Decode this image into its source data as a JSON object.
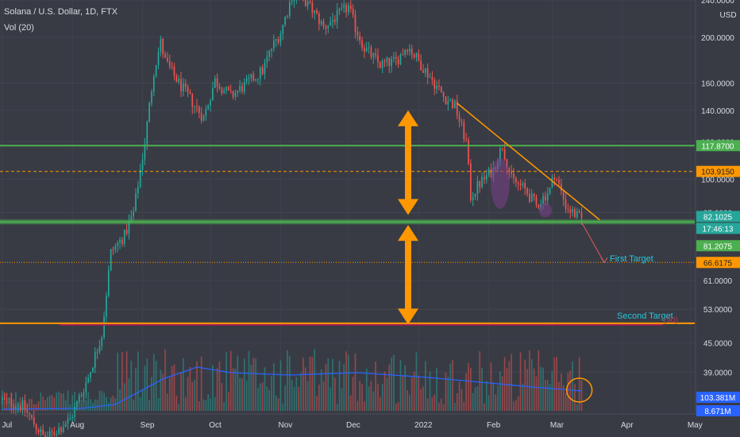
{
  "legend": {
    "title": "Solana / U.S. Dollar, 1D, FTX",
    "volume": "Vol (20)"
  },
  "price_axis": {
    "currency": "USD",
    "ticks": [
      "240.0000",
      "200.0000",
      "160.0000",
      "140.0000",
      "120.0000",
      "100.0000",
      "85.0000",
      "61.0000",
      "53.0000",
      "45.0000",
      "39.0000"
    ]
  },
  "time_axis": {
    "ticks": [
      "Jul",
      "Aug",
      "Sep",
      "Oct",
      "Nov",
      "Dec",
      "2022",
      "Feb",
      "Mar",
      "Apr",
      "May"
    ]
  },
  "price_tags": [
    {
      "text": "117.8700",
      "bg": "#4caf50",
      "fg": "#ffffff"
    },
    {
      "text": "103.9150",
      "bg": "#ff9800",
      "fg": "#1e1e1e"
    },
    {
      "text": "82.1025",
      "bg": "#26a69a",
      "fg": "#ffffff"
    },
    {
      "text": "17:46:13",
      "bg": "#26a69a",
      "fg": "#ffffff"
    },
    {
      "text": "81.2075",
      "bg": "#4caf50",
      "fg": "#ffffff"
    },
    {
      "text": "66.6175",
      "bg": "#ff9800",
      "fg": "#1e1e1e"
    },
    {
      "text": "103.381M",
      "bg": "#2962ff",
      "fg": "#ffffff"
    },
    {
      "text": "8.671M",
      "bg": "#2962ff",
      "fg": "#ffffff"
    }
  ],
  "annotations": {
    "first_target": "First Target",
    "second_target": "Second Target",
    "second_target_note": "(90)"
  },
  "colors": {
    "background": "#383b44",
    "up": "#26a69a",
    "down": "#ef5350",
    "support": "#4caf50",
    "dashed": "#ff9800",
    "arrow": "#ff9800",
    "trendline": "#ff9800",
    "volume_ma": "#2962ff",
    "target_text": "#26c6da",
    "ellipse": "#7b3f8a"
  },
  "chart_data": {
    "type": "candlestick",
    "symbol": "SOL/USD",
    "interval": "1D",
    "exchange": "FTX",
    "scale": "log",
    "ylim": [
      38,
      245
    ],
    "x_range": [
      "2021-06-30",
      "2022-05-03"
    ],
    "last_price": 82.1025,
    "countdown": "17:46:13",
    "horizontal_levels": [
      {
        "price": 117.87,
        "style": "solid",
        "color": "#4caf50"
      },
      {
        "price": 103.915,
        "style": "dashed",
        "color": "#ff9800"
      },
      {
        "price": 81.2075,
        "style": "solid",
        "color": "#4caf50"
      },
      {
        "price": 66.6175,
        "style": "dotted",
        "color": "#ff9800"
      },
      {
        "price": 49.5,
        "style": "solid",
        "color": "#ff9800"
      }
    ],
    "trendline": {
      "start": [
        "2022-01-18",
        145
      ],
      "end": [
        "2022-03-22",
        82
      ]
    },
    "projection": {
      "from": [
        "2022-03-14",
        81
      ],
      "to": [
        "2022-03-24",
        66.6
      ]
    },
    "price_waypoints": [
      [
        "2021-07-01",
        34
      ],
      [
        "2021-07-10",
        33
      ],
      [
        "2021-07-20",
        28
      ],
      [
        "2021-07-31",
        31
      ],
      [
        "2021-08-08",
        38
      ],
      [
        "2021-08-14",
        47
      ],
      [
        "2021-08-18",
        70
      ],
      [
        "2021-08-24",
        76
      ],
      [
        "2021-08-28",
        85
      ],
      [
        "2021-09-02",
        120
      ],
      [
        "2021-09-06",
        170
      ],
      [
        "2021-09-09",
        195
      ],
      [
        "2021-09-11",
        178
      ],
      [
        "2021-09-17",
        160
      ],
      [
        "2021-09-22",
        148
      ],
      [
        "2021-09-28",
        135
      ],
      [
        "2021-10-03",
        162
      ],
      [
        "2021-10-10",
        150
      ],
      [
        "2021-10-16",
        158
      ],
      [
        "2021-10-24",
        170
      ],
      [
        "2021-10-28",
        190
      ],
      [
        "2021-11-01",
        205
      ],
      [
        "2021-11-06",
        245
      ],
      [
        "2021-11-12",
        238
      ],
      [
        "2021-11-16",
        225
      ],
      [
        "2021-11-20",
        210
      ],
      [
        "2021-11-26",
        222
      ],
      [
        "2021-12-01",
        232
      ],
      [
        "2021-12-04",
        210
      ],
      [
        "2021-12-08",
        190
      ],
      [
        "2021-12-15",
        175
      ],
      [
        "2021-12-22",
        178
      ],
      [
        "2021-12-27",
        192
      ],
      [
        "2022-01-01",
        178
      ],
      [
        "2022-01-06",
        165
      ],
      [
        "2022-01-12",
        150
      ],
      [
        "2022-01-17",
        143
      ],
      [
        "2022-01-22",
        120
      ],
      [
        "2022-01-24",
        92
      ],
      [
        "2022-01-28",
        98
      ],
      [
        "2022-02-03",
        105
      ],
      [
        "2022-02-07",
        118
      ],
      [
        "2022-02-11",
        100
      ],
      [
        "2022-02-17",
        95
      ],
      [
        "2022-02-22",
        88
      ],
      [
        "2022-02-28",
        95
      ],
      [
        "2022-03-02",
        103
      ],
      [
        "2022-03-07",
        88
      ],
      [
        "2022-03-10",
        85
      ],
      [
        "2022-03-14",
        82
      ]
    ],
    "volume_ma_waypoints": [
      [
        "2021-07-01",
        2
      ],
      [
        "2021-08-05",
        3
      ],
      [
        "2021-08-20",
        8
      ],
      [
        "2021-09-10",
        40
      ],
      [
        "2021-09-25",
        55
      ],
      [
        "2021-10-10",
        48
      ],
      [
        "2021-11-05",
        45
      ],
      [
        "2021-12-05",
        48
      ],
      [
        "2022-01-05",
        42
      ],
      [
        "2022-02-01",
        35
      ],
      [
        "2022-02-20",
        30
      ],
      [
        "2022-03-14",
        25
      ]
    ]
  }
}
